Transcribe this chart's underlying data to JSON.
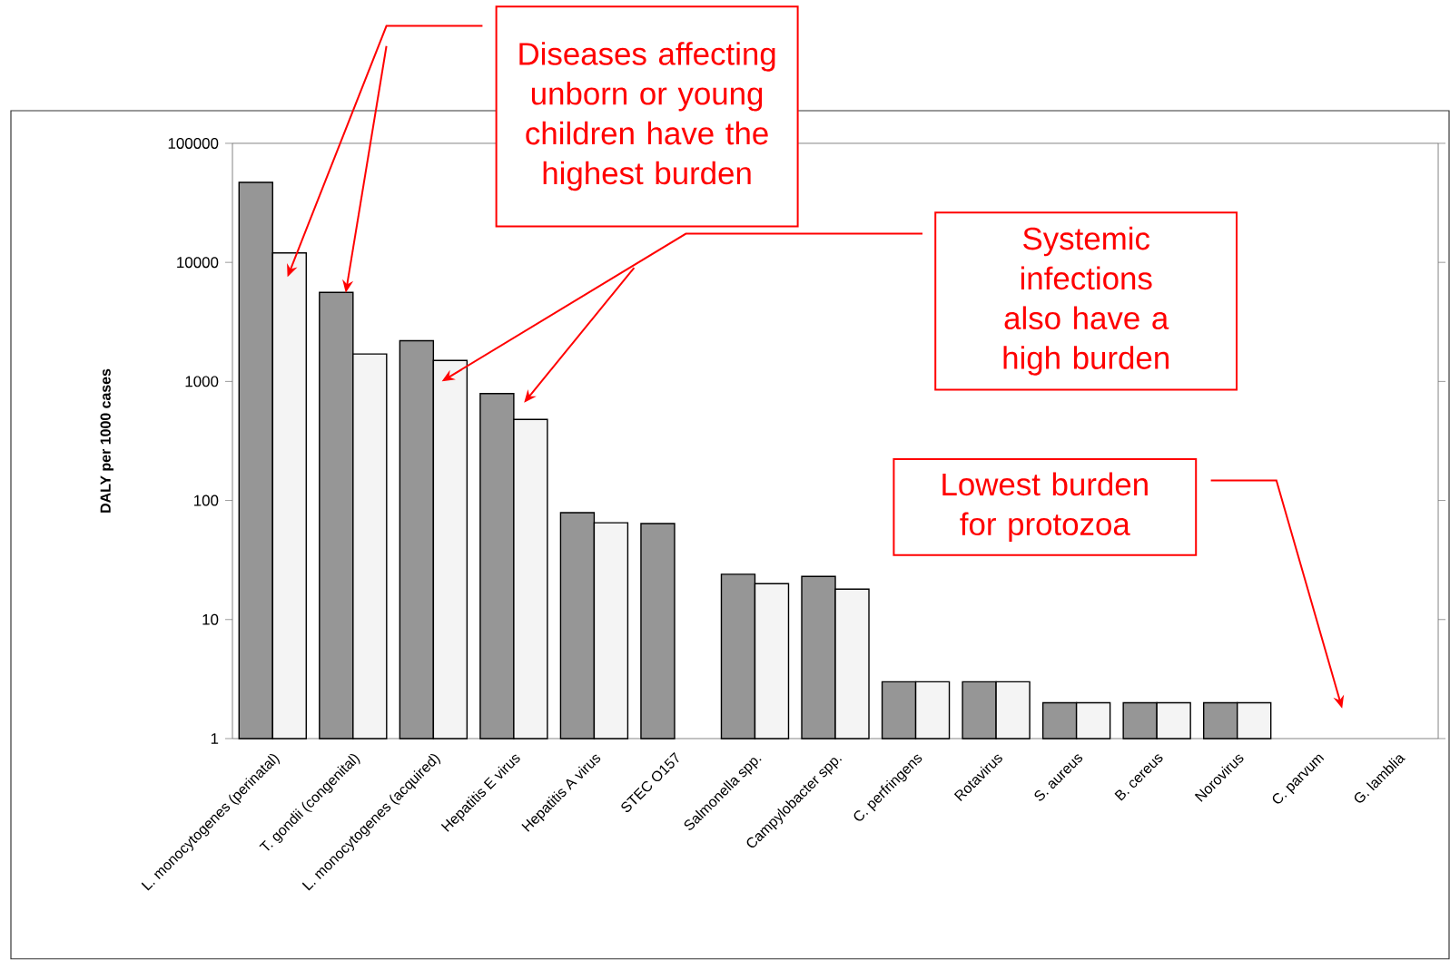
{
  "chart_data": {
    "type": "bar",
    "ylabel": "DALY per 1000 cases",
    "categories": [
      "L. monocytogenes (perinatal)",
      "T. gondii (congenital)",
      "L. monocytogenes (acquired)",
      "Hepatitis E virus",
      "Hepatitis A virus",
      "STEC O157",
      "Salmonella spp.",
      "Campylobacter spp.",
      "C. perfringens",
      "Rotavirus",
      "S. aureus",
      "B. cereus",
      "Norovirus",
      "C. parvum",
      "G. lamblia"
    ],
    "series": [
      {
        "color": "#969696",
        "values": [
          47000,
          5600,
          2200,
          790,
          79,
          64,
          24,
          23,
          3,
          3,
          2,
          2,
          2,
          null,
          null
        ]
      },
      {
        "color": "#f4f4f4",
        "values": [
          12000,
          1700,
          1500,
          480,
          65,
          null,
          20,
          18,
          3,
          3,
          2,
          2,
          2,
          null,
          null
        ]
      }
    ],
    "log": "y",
    "ylim": [
      1,
      100000
    ],
    "yticks": [
      1,
      10,
      100,
      1000,
      10000,
      100000
    ],
    "annotations": [
      "Diseases affecting unborn or young children have the highest burden",
      "Systemic infections also have a high burden",
      "Lowest burden for protozoa"
    ]
  }
}
